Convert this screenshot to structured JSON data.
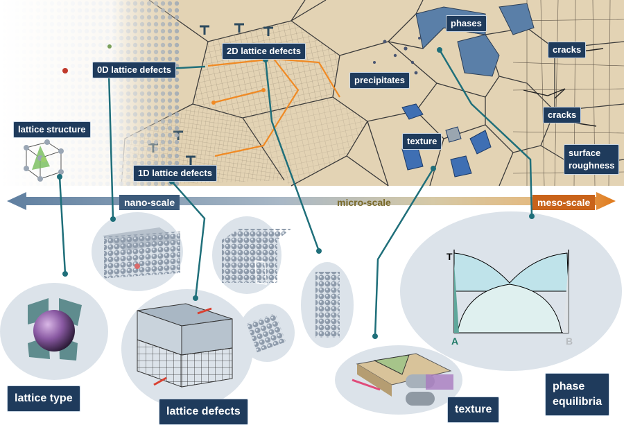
{
  "scale_bar": {
    "nano": "nano-scale",
    "micro": "micro-scale",
    "meso": "meso-scale"
  },
  "labels": {
    "zero_d_defects": "0D lattice defects",
    "two_d_defects": "2D lattice defects",
    "one_d_defects": "1D lattice defects",
    "lattice_structure": "lattice structure",
    "phases": "phases",
    "precipitates": "precipitates",
    "texture_top": "texture",
    "cracks_1": "cracks",
    "cracks_2": "cracks",
    "surface_roughness_1": "surface",
    "surface_roughness_2": "roughness"
  },
  "bottom_labels": {
    "lattice_type": "lattice type",
    "lattice_defects": "lattice defects",
    "texture": "texture",
    "phase_equilibria_1": "phase",
    "phase_equilibria_2": "equilibria"
  },
  "phase_diagram": {
    "y_axis": "T",
    "left_component": "A",
    "right_component": "B"
  },
  "colors": {
    "label_bg": "#1f3b5c",
    "grain_fill": "#e3d3b4",
    "grain_line": "#3a3a3a",
    "bubble": "#dce3ea",
    "connector": "#1f6f7a",
    "boundary_orange": "#f08a24",
    "phase_blue": "#5a7fa8",
    "arrow_blue": "#5f7fa0",
    "arrow_orange": "#e07a1c"
  }
}
